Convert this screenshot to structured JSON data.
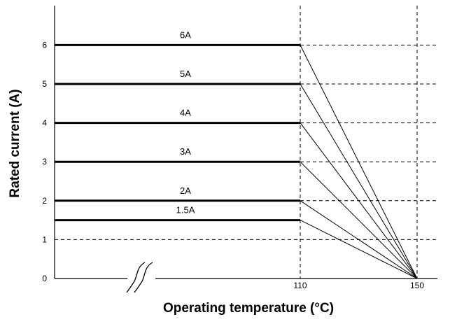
{
  "chart_data": {
    "type": "line",
    "title": "",
    "xlabel": "Operating temperature (°C)",
    "ylabel": "Rated current (A)",
    "x_ticks": [
      "110",
      "150"
    ],
    "y_ticks": [
      "0",
      "1",
      "2",
      "3",
      "4",
      "5",
      "6"
    ],
    "ylim": [
      0,
      6.5
    ],
    "x_axis_broken": true,
    "grid": "dashed",
    "series": [
      {
        "name": "6A",
        "points": [
          {
            "x": "start",
            "y": 6
          },
          {
            "x": 110,
            "y": 6
          },
          {
            "x": 150,
            "y": 0
          }
        ]
      },
      {
        "name": "5A",
        "points": [
          {
            "x": "start",
            "y": 5
          },
          {
            "x": 110,
            "y": 5
          },
          {
            "x": 150,
            "y": 0
          }
        ]
      },
      {
        "name": "4A",
        "points": [
          {
            "x": "start",
            "y": 4
          },
          {
            "x": 110,
            "y": 4
          },
          {
            "x": 150,
            "y": 0
          }
        ]
      },
      {
        "name": "3A",
        "points": [
          {
            "x": "start",
            "y": 3
          },
          {
            "x": 110,
            "y": 3
          },
          {
            "x": 150,
            "y": 0
          }
        ]
      },
      {
        "name": "2A",
        "points": [
          {
            "x": "start",
            "y": 2
          },
          {
            "x": 110,
            "y": 2
          },
          {
            "x": 150,
            "y": 0
          }
        ]
      },
      {
        "name": "1.5A",
        "points": [
          {
            "x": "start",
            "y": 1.5
          },
          {
            "x": 110,
            "y": 1.5
          },
          {
            "x": 150,
            "y": 0
          }
        ]
      }
    ]
  }
}
